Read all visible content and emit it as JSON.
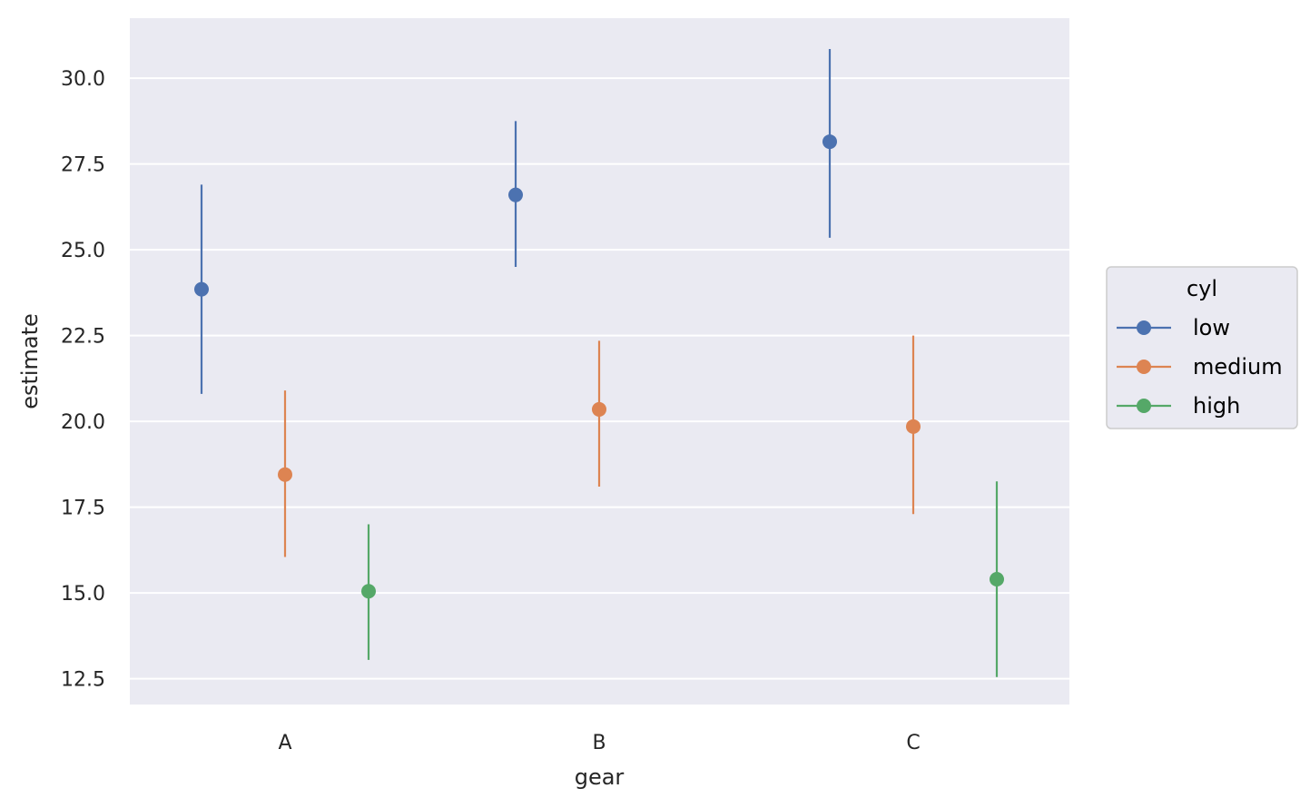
{
  "chart_data": {
    "type": "scatter",
    "xlabel": "gear",
    "ylabel": "estimate",
    "categories": [
      "A",
      "B",
      "C"
    ],
    "ylim": [
      11.75,
      31.75
    ],
    "yticks": [
      12.5,
      15.0,
      17.5,
      20.0,
      22.5,
      25.0,
      27.5,
      30.0
    ],
    "ytick_labels": [
      "12.5",
      "15.0",
      "17.5",
      "20.0",
      "22.5",
      "25.0",
      "27.5",
      "30.0"
    ],
    "grid": true,
    "legend": {
      "title": "cyl",
      "placement": "right"
    },
    "series": [
      {
        "name": "low",
        "color": "#4c72b0",
        "values": [
          23.85,
          26.6,
          28.15
        ],
        "lower": [
          20.8,
          24.5,
          25.35
        ],
        "upper": [
          26.9,
          28.75,
          30.85
        ]
      },
      {
        "name": "medium",
        "color": "#dd8452",
        "values": [
          18.45,
          20.35,
          19.85
        ],
        "lower": [
          16.05,
          18.1,
          17.3
        ],
        "upper": [
          20.9,
          22.35,
          22.5
        ]
      },
      {
        "name": "high",
        "color": "#55a868",
        "values": [
          15.05,
          null,
          15.4
        ],
        "lower": [
          13.05,
          null,
          12.55
        ],
        "upper": [
          17.0,
          null,
          18.25
        ]
      }
    ]
  }
}
